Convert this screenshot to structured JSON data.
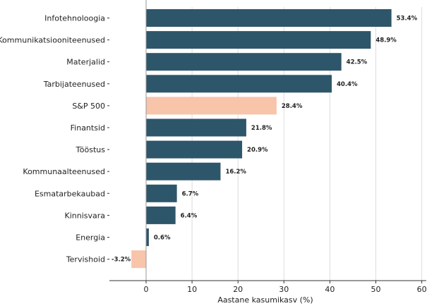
{
  "chart_data": {
    "type": "bar",
    "orientation": "horizontal",
    "title": "",
    "xlabel": "Aastane kasumikasv (%)",
    "ylabel": "",
    "xlim": [
      -8,
      60
    ],
    "xticks": [
      0,
      10,
      20,
      30,
      40,
      50,
      60
    ],
    "grid": "vertical",
    "categories": [
      "Infotehnoloogia",
      "Kommunikatsiooniteenused",
      "Materjalid",
      "Tarbijateenused",
      "S&P 500",
      "Finantsid",
      "Tööstus",
      "Kommunaalteenused",
      "Esmatarbekaubad",
      "Kinnisvara",
      "Energia",
      "Tervishoid"
    ],
    "values": [
      53.4,
      48.9,
      42.5,
      40.4,
      28.4,
      21.8,
      20.9,
      16.2,
      6.7,
      6.4,
      0.6,
      -3.2
    ],
    "value_labels": [
      "53.4%",
      "48.9%",
      "42.5%",
      "40.4%",
      "28.4%",
      "21.8%",
      "20.9%",
      "16.2%",
      "6.7%",
      "6.4%",
      "0.6%",
      "-3.2%"
    ],
    "highlight": [
      false,
      false,
      false,
      false,
      true,
      false,
      false,
      false,
      false,
      false,
      false,
      true
    ],
    "colors": {
      "bar": "#2e566b",
      "highlight": "#f8c4aa",
      "grid": "#dddddd",
      "axis": "#333333",
      "zero_line": "#999999"
    }
  }
}
